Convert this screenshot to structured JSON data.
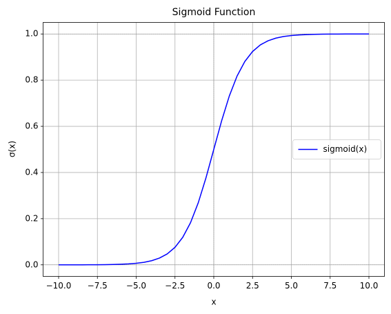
{
  "chart_data": {
    "type": "line",
    "title": "Sigmoid Function",
    "xlabel": "x",
    "ylabel": "σ(x)",
    "x": [
      -10,
      -9.5,
      -9,
      -8.5,
      -8,
      -7.5,
      -7,
      -6.5,
      -6,
      -5.5,
      -5,
      -4.5,
      -4,
      -3.5,
      -3,
      -2.5,
      -2,
      -1.5,
      -1,
      -0.5,
      0,
      0.5,
      1,
      1.5,
      2,
      2.5,
      3,
      3.5,
      4,
      4.5,
      5,
      5.5,
      6,
      6.5,
      7,
      7.5,
      8,
      8.5,
      9,
      9.5,
      10
    ],
    "series": [
      {
        "name": "sigmoid(x)",
        "color": "#0000ff",
        "values": [
          0.0,
          0.0001,
          0.0001,
          0.0002,
          0.0003,
          0.0006,
          0.0009,
          0.0015,
          0.0025,
          0.0041,
          0.0067,
          0.011,
          0.018,
          0.0293,
          0.0474,
          0.0759,
          0.1192,
          0.1824,
          0.2689,
          0.3775,
          0.5,
          0.6225,
          0.7311,
          0.8176,
          0.8808,
          0.9241,
          0.9526,
          0.9707,
          0.982,
          0.989,
          0.9933,
          0.9959,
          0.9975,
          0.9985,
          0.9991,
          0.9994,
          0.9997,
          0.9998,
          0.9999,
          0.9999,
          1.0
        ]
      }
    ],
    "xlim": [
      -11,
      11
    ],
    "ylim": [
      -0.05,
      1.05
    ],
    "xticks": [
      {
        "value": -10,
        "label": "−10.0"
      },
      {
        "value": -7.5,
        "label": "−7.5"
      },
      {
        "value": -5,
        "label": "−5.0"
      },
      {
        "value": -2.5,
        "label": "−2.5"
      },
      {
        "value": 0,
        "label": "0.0"
      },
      2.5,
      {
        "value": 5,
        "label": "5.0"
      },
      7.5,
      {
        "value": 10,
        "label": "10.0"
      }
    ],
    "yticks": [
      {
        "value": 0,
        "label": "0.0"
      },
      0.2,
      0.4,
      0.6,
      0.8,
      {
        "value": 1,
        "label": "1.0"
      }
    ],
    "hlines": [
      0,
      1
    ],
    "vlines": [
      0
    ],
    "grid": true,
    "legend": "center right"
  }
}
